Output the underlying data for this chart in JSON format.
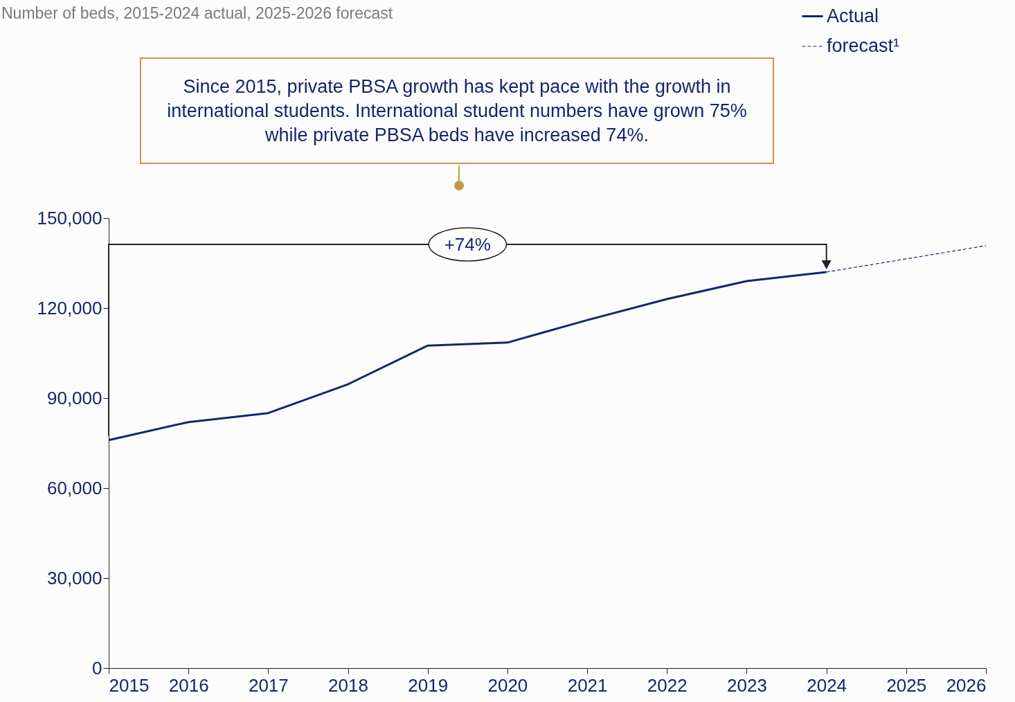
{
  "chart_data": {
    "type": "line",
    "title": "Number of beds, 2015-2024 actual, 2025-2026 forecast",
    "xlim": [
      2015,
      2026
    ],
    "xticks": [
      2015,
      2016,
      2017,
      2018,
      2019,
      2020,
      2021,
      2022,
      2023,
      2024,
      2025,
      2026
    ],
    "ylim": [
      0,
      150000
    ],
    "yticks": [
      0,
      {
        "value": 30000,
        "label": "30,000"
      },
      {
        "value": 60000,
        "label": "60,000"
      },
      {
        "value": 90000,
        "label": "90,000"
      },
      {
        "value": 120000,
        "label": "120,000"
      },
      {
        "value": 150000,
        "label": "150,000"
      }
    ],
    "legend": "top right",
    "series": [
      {
        "name": "Actual",
        "color": "#14266b",
        "line_style": "solid",
        "x": [
          2015,
          2016,
          2017,
          2018,
          2019,
          2020,
          2021,
          2022,
          2023,
          2024
        ],
        "values": [
          76000,
          82000,
          85000,
          94600,
          107500,
          108500,
          116000,
          123000,
          129000,
          132000
        ]
      },
      {
        "name": "forecast¹",
        "color": "#14266b",
        "line_style": "dashed",
        "x": [
          2024,
          2025,
          2026
        ],
        "values": [
          132000,
          136400,
          140800
        ]
      }
    ],
    "annotations": [
      "Since 2015, private PBSA growth has kept pace with the growth in international students. International student numbers have grown 75% while private PBSA beds have increased 74%.",
      "+74%"
    ]
  }
}
